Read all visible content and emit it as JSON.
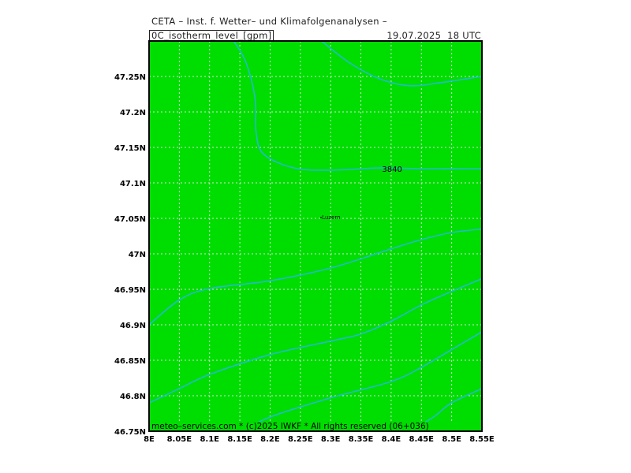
{
  "header": {
    "title": "CETA – Inst. f. Wetter– und Klimafolgenanalysen –",
    "variable": "0C_isotherm_level_[gpm]",
    "datetime": "19.07.2025  18 UTC"
  },
  "footer": {
    "text": "meteo–services.com * (c)2025 IWKF * All rights reserved (06+036)"
  },
  "colors": {
    "fill": "#00dd00",
    "contour": "#22bbcc",
    "grid": "#dddddd",
    "frame": "#000000"
  },
  "chart_data": {
    "type": "contour-map",
    "grid": true,
    "xlim": [
      8.0,
      8.55
    ],
    "ylim": [
      46.75,
      47.3
    ],
    "x_ticks": [
      8.0,
      8.05,
      8.1,
      8.15,
      8.2,
      8.25,
      8.3,
      8.35,
      8.4,
      8.45,
      8.5,
      8.55
    ],
    "x_tick_labels": [
      "8E",
      "8.05E",
      "8.1E",
      "8.15E",
      "8.2E",
      "8.25E",
      "8.3E",
      "8.35E",
      "8.4E",
      "8.45E",
      "8.5E",
      "8.55E"
    ],
    "y_ticks": [
      46.75,
      46.8,
      46.85,
      46.9,
      46.95,
      47.0,
      47.05,
      47.1,
      47.15,
      47.2,
      47.25
    ],
    "y_tick_labels": [
      "46.75N",
      "46.8N",
      "46.85N",
      "46.9N",
      "46.95N",
      "47N",
      "47.05N",
      "47.1N",
      "47.15N",
      "47.2N",
      "47.25N"
    ],
    "cities": [
      {
        "name": "Luzern",
        "lon": 8.3,
        "lat": 47.05
      }
    ],
    "contour_labels": [
      {
        "text": "3840",
        "lon": 8.385,
        "lat": 47.12
      }
    ],
    "contours": [
      {
        "name": "c1",
        "points": [
          [
            8.14,
            47.3
          ],
          [
            8.16,
            47.27
          ],
          [
            8.175,
            47.22
          ],
          [
            8.177,
            47.17
          ],
          [
            8.19,
            47.14
          ],
          [
            8.24,
            47.121
          ],
          [
            8.3,
            47.118
          ],
          [
            8.38,
            47.121
          ],
          [
            8.45,
            47.12
          ],
          [
            8.55,
            47.12
          ]
        ]
      },
      {
        "name": "c2",
        "points": [
          [
            8.285,
            47.3
          ],
          [
            8.33,
            47.27
          ],
          [
            8.38,
            47.247
          ],
          [
            8.43,
            47.237
          ],
          [
            8.48,
            47.241
          ],
          [
            8.55,
            47.25
          ]
        ]
      },
      {
        "name": "c3",
        "points": [
          [
            8.0,
            46.9
          ],
          [
            8.05,
            46.935
          ],
          [
            8.1,
            46.951
          ],
          [
            8.2,
            46.962
          ],
          [
            8.3,
            46.98
          ],
          [
            8.4,
            47.007
          ],
          [
            8.45,
            47.02
          ],
          [
            8.5,
            47.03
          ],
          [
            8.55,
            47.035
          ]
        ]
      },
      {
        "name": "c4",
        "points": [
          [
            8.0,
            46.79
          ],
          [
            8.05,
            46.81
          ],
          [
            8.1,
            46.83
          ],
          [
            8.2,
            46.858
          ],
          [
            8.3,
            46.877
          ],
          [
            8.35,
            46.887
          ],
          [
            8.4,
            46.905
          ],
          [
            8.45,
            46.928
          ],
          [
            8.5,
            46.947
          ],
          [
            8.55,
            46.965
          ]
        ]
      },
      {
        "name": "c5",
        "points": [
          [
            8.155,
            46.75
          ],
          [
            8.2,
            46.77
          ],
          [
            8.3,
            46.797
          ],
          [
            8.4,
            46.82
          ],
          [
            8.45,
            46.84
          ],
          [
            8.5,
            46.865
          ],
          [
            8.55,
            46.89
          ]
        ]
      },
      {
        "name": "c6",
        "points": [
          [
            8.43,
            46.75
          ],
          [
            8.47,
            46.77
          ],
          [
            8.5,
            46.79
          ],
          [
            8.55,
            46.81
          ]
        ]
      }
    ]
  }
}
